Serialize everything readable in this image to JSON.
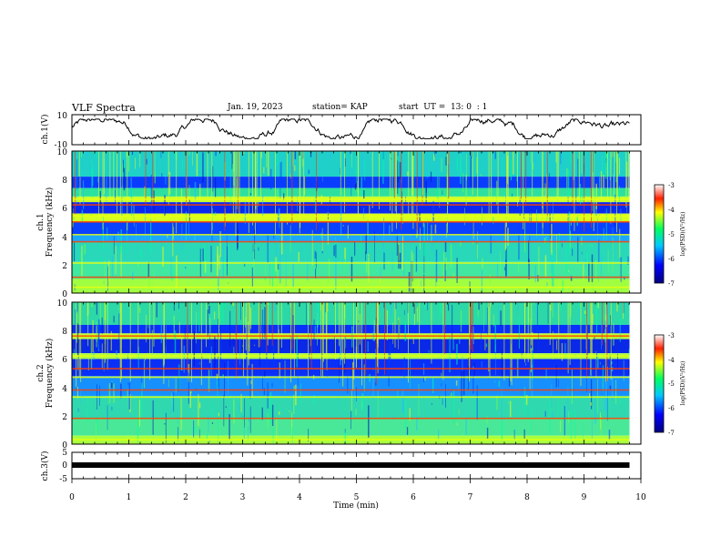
{
  "header": {
    "title": "VLF Spectra",
    "date": "Jan. 19, 2023",
    "station": "station= KAP",
    "start": "start  UT =  13: 0  : 1"
  },
  "chart_data": [
    {
      "id": "ch1-voltage",
      "type": "line",
      "ylabel": "ch.1(V)",
      "xlim": [
        0,
        10
      ],
      "ylim": [
        -10,
        10
      ],
      "yticks": [
        "10",
        "-10"
      ]
    },
    {
      "id": "ch1-spectrogram",
      "type": "heatmap",
      "ylabel": "ch.1",
      "ylabel2": "Frequency (kHz)",
      "xlim": [
        0,
        10
      ],
      "ylim": [
        0,
        10
      ],
      "yticks": [
        "10",
        "8",
        "6",
        "4",
        "2",
        "0"
      ],
      "colorbar": {
        "label": "log(PSD)(V²/Hz)",
        "range": [
          -7,
          -3
        ],
        "ticks": [
          "-3",
          "-4",
          "-5",
          "-6",
          "-7"
        ]
      },
      "bands_khz": [
        0.4,
        1.1,
        2.1,
        3.6,
        4.1,
        5.0,
        5.4,
        6.2,
        6.6
      ]
    },
    {
      "id": "ch2-spectrogram",
      "type": "heatmap",
      "ylabel": "ch.2",
      "ylabel2": "Frequency (kHz)",
      "xlim": [
        0,
        10
      ],
      "ylim": [
        0,
        10
      ],
      "yticks": [
        "10",
        "8",
        "6",
        "4",
        "2",
        "0"
      ],
      "colorbar": {
        "label": "log(PSD)(V²/Hz)",
        "range": [
          -7,
          -3
        ],
        "ticks": [
          "-3",
          "-4",
          "-5",
          "-6",
          "-7"
        ]
      },
      "bands_khz": [
        0.3,
        1.8,
        3.3,
        3.8,
        4.7,
        5.3,
        6.2,
        7.6
      ]
    },
    {
      "id": "ch3-voltage",
      "type": "line",
      "ylabel": "ch.3(V)",
      "xlim": [
        0,
        10
      ],
      "ylim": [
        -5,
        5
      ],
      "yticks": [
        "5",
        "0",
        "-5"
      ],
      "level": 0
    }
  ],
  "xaxis": {
    "label": "Time (min)",
    "ticks": [
      "0",
      "1",
      "2",
      "3",
      "4",
      "5",
      "6",
      "7",
      "8",
      "9",
      "10"
    ],
    "data_end_min": 9.8
  }
}
